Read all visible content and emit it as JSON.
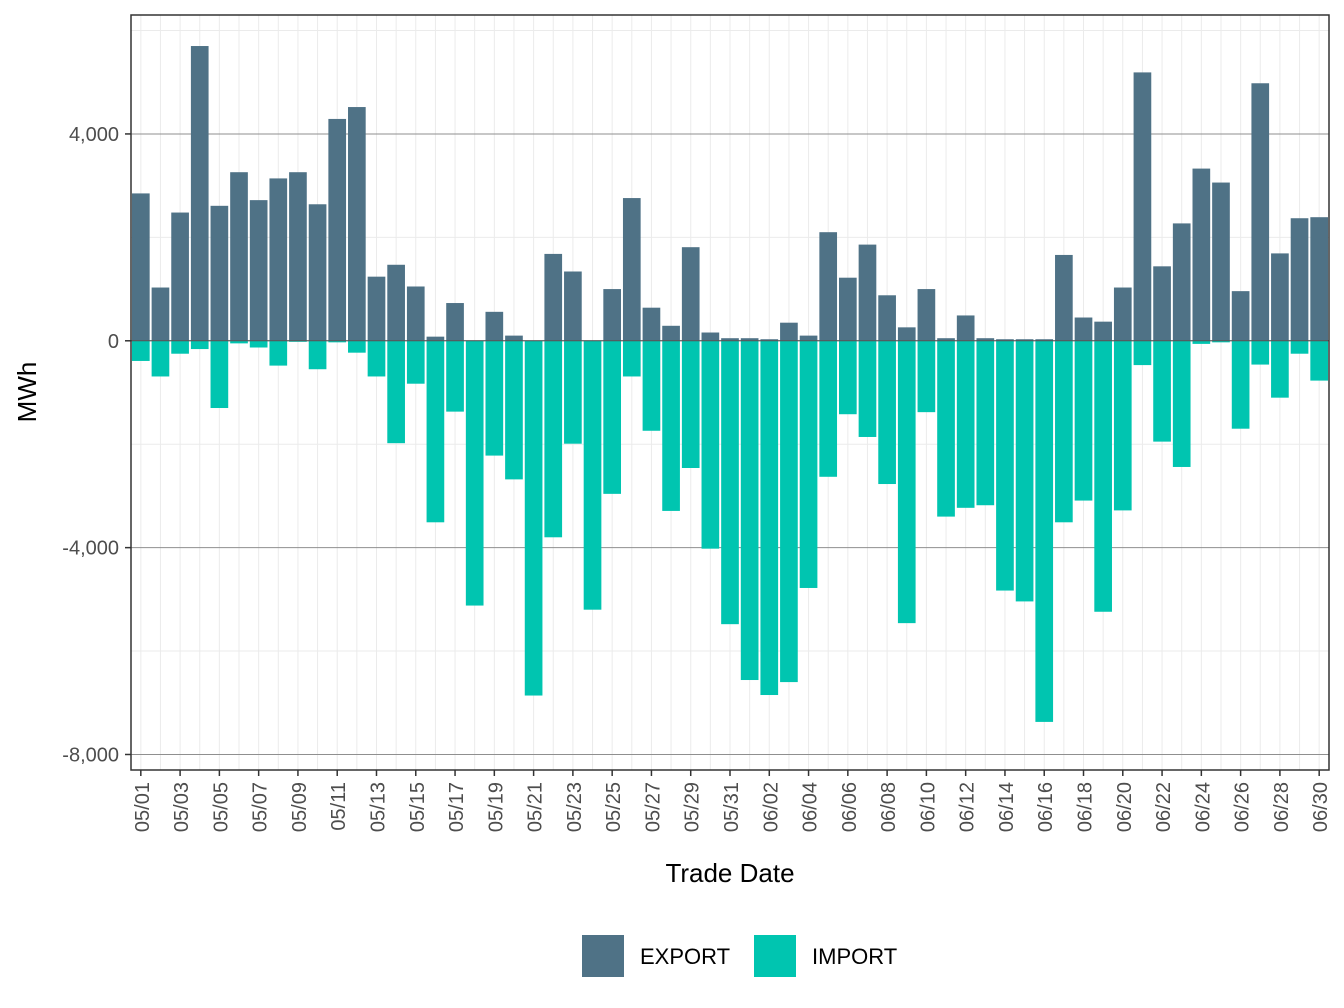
{
  "chart_data": {
    "type": "bar",
    "title": "",
    "xlabel": "Trade Date",
    "ylabel": "MWh",
    "ylim": [
      -8300,
      6300
    ],
    "yticks": [
      -8000,
      -4000,
      0,
      4000
    ],
    "ytick_labels": [
      "-8,000",
      "-4,000",
      "0",
      "4,000"
    ],
    "grid": true,
    "legend_position": "bottom",
    "categories": [
      "05/01",
      "05/02",
      "05/03",
      "05/04",
      "05/05",
      "05/06",
      "05/07",
      "05/08",
      "05/09",
      "05/10",
      "05/11",
      "05/12",
      "05/13",
      "05/14",
      "05/15",
      "05/16",
      "05/17",
      "05/18",
      "05/19",
      "05/20",
      "05/21",
      "05/22",
      "05/23",
      "05/24",
      "05/25",
      "05/26",
      "05/27",
      "05/28",
      "05/29",
      "05/30",
      "05/31",
      "06/01",
      "06/02",
      "06/03",
      "06/04",
      "06/05",
      "06/06",
      "06/07",
      "06/08",
      "06/09",
      "06/10",
      "06/11",
      "06/12",
      "06/13",
      "06/14",
      "06/15",
      "06/16",
      "06/17",
      "06/18",
      "06/19",
      "06/20",
      "06/21",
      "06/22",
      "06/23",
      "06/24",
      "06/25",
      "06/26",
      "06/27",
      "06/28",
      "06/29",
      "06/30"
    ],
    "tick_labels": [
      "05/01",
      "05/03",
      "05/05",
      "05/07",
      "05/09",
      "05/11",
      "05/13",
      "05/15",
      "05/17",
      "05/19",
      "05/21",
      "05/23",
      "05/25",
      "05/27",
      "05/29",
      "05/31",
      "06/02",
      "06/04",
      "06/06",
      "06/08",
      "06/10",
      "06/12",
      "06/14",
      "06/16",
      "06/18",
      "06/20",
      "06/22",
      "06/24",
      "06/26",
      "06/28",
      "06/30"
    ],
    "series": [
      {
        "name": "EXPORT",
        "color": "#4f7286",
        "values": [
          2850,
          1030,
          2480,
          5700,
          2610,
          3260,
          2720,
          3140,
          3260,
          2640,
          4290,
          4520,
          1240,
          1470,
          1050,
          80,
          730,
          0,
          560,
          100,
          0,
          1680,
          1340,
          0,
          1000,
          2760,
          640,
          290,
          1810,
          160,
          50,
          50,
          30,
          350,
          100,
          2100,
          1220,
          1860,
          880,
          260,
          1000,
          50,
          490,
          50,
          30,
          30,
          30,
          1660,
          450,
          370,
          1030,
          5190,
          1440,
          2270,
          3330,
          3060,
          960,
          4980,
          1690,
          2370,
          2390
        ]
      },
      {
        "name": "IMPORT",
        "color": "#00c5b0",
        "values": [
          -390,
          -690,
          -250,
          -160,
          -1300,
          -50,
          -130,
          -480,
          -20,
          -550,
          -30,
          -230,
          -690,
          -1980,
          -830,
          -3510,
          -1370,
          -5120,
          -2220,
          -2680,
          -6860,
          -3800,
          -1990,
          -5200,
          -2960,
          -690,
          -1740,
          -3290,
          -2460,
          -4020,
          -5480,
          -6560,
          -6850,
          -6600,
          -4780,
          -2630,
          -1420,
          -1860,
          -2770,
          -5460,
          -1380,
          -3400,
          -3230,
          -3180,
          -4830,
          -5040,
          -7370,
          -3510,
          -3090,
          -5240,
          -3280,
          -470,
          -1950,
          -2440,
          -60,
          -30,
          -1700,
          -460,
          -1100,
          -250,
          -770
        ]
      }
    ]
  }
}
